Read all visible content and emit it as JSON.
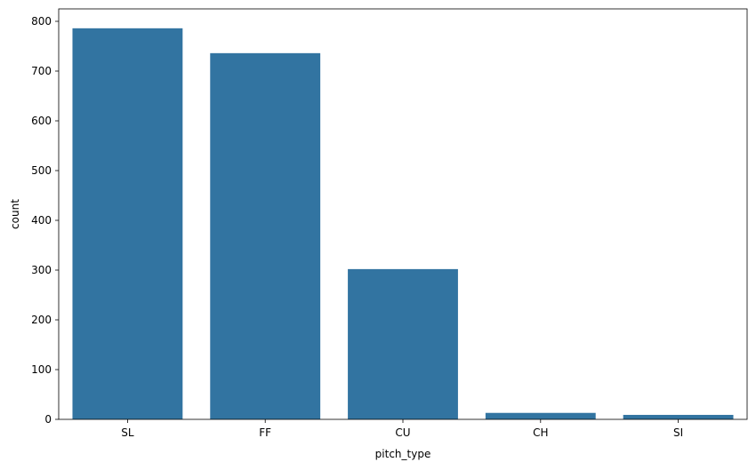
{
  "chart_data": {
    "type": "bar",
    "categories": [
      "SL",
      "FF",
      "CU",
      "CH",
      "SI"
    ],
    "values": [
      786,
      736,
      302,
      13,
      9
    ],
    "title": "",
    "xlabel": "pitch_type",
    "ylabel": "count",
    "ylim": [
      0,
      825
    ],
    "yticks": [
      0,
      100,
      200,
      300,
      400,
      500,
      600,
      700,
      800
    ],
    "grid": false,
    "legend": "none",
    "bar_color": "#3274a1"
  }
}
